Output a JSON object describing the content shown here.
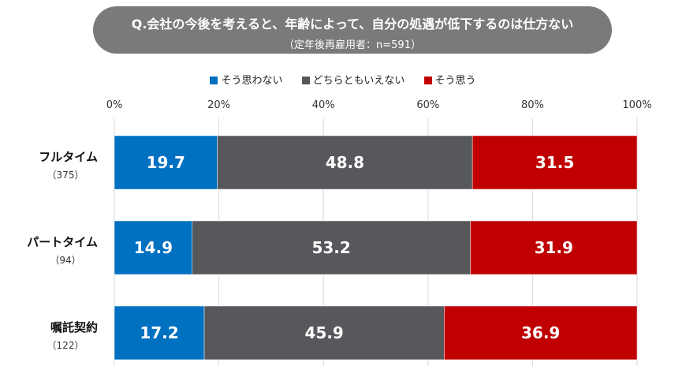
{
  "chart_data": {
    "type": "bar",
    "orientation": "horizontal",
    "stacked": true,
    "title": "Q.会社の今後を考えると、年齢によって、自分の処遇が低下するのは仕方ない",
    "subtitle": "（定年後再雇用者：n=591）",
    "categories": [
      "フルタイム",
      "パートタイム",
      "嘱託契約"
    ],
    "category_counts": [
      "（375）",
      "（94）",
      "（122）"
    ],
    "series": [
      {
        "name": "そう思わない",
        "color": "#0070C0",
        "values": [
          19.7,
          14.9,
          17.2
        ]
      },
      {
        "name": "どちらともいえない",
        "color": "#56585C",
        "values": [
          48.8,
          53.2,
          45.9
        ]
      },
      {
        "name": "そう思う",
        "color": "#C00000",
        "values": [
          31.5,
          31.9,
          36.9
        ]
      }
    ],
    "xlim": [
      0,
      100
    ],
    "xticks": [
      "0%",
      "20%",
      "40%",
      "60%",
      "80%",
      "100%"
    ],
    "grid": true,
    "legend": "top"
  }
}
